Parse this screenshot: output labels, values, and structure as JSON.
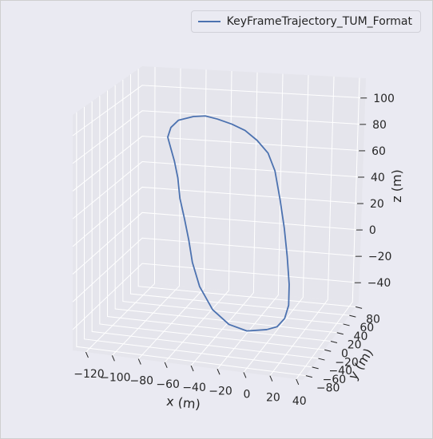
{
  "chart_data": {
    "type": "line3d",
    "title": "",
    "series": [
      {
        "name": "KeyFrameTrajectory_TUM_Format",
        "color": "#4c72b0",
        "points": [
          [
            0,
            -20,
            -45
          ],
          [
            -15,
            -22,
            -47
          ],
          [
            -30,
            -18,
            -45
          ],
          [
            -45,
            -10,
            -38
          ],
          [
            -58,
            0,
            -25
          ],
          [
            -66,
            8,
            -10
          ],
          [
            -70,
            12,
            5
          ],
          [
            -74,
            14,
            20
          ],
          [
            -78,
            15,
            35
          ],
          [
            -80,
            16,
            50
          ],
          [
            -83,
            17,
            62
          ],
          [
            -86,
            17,
            72
          ],
          [
            -88,
            16,
            80
          ],
          [
            -85,
            14,
            88
          ],
          [
            -78,
            10,
            95
          ],
          [
            -65,
            5,
            100
          ],
          [
            -55,
            2,
            102
          ],
          [
            -45,
            0,
            101
          ],
          [
            -33,
            -3,
            99
          ],
          [
            -22,
            -6,
            96
          ],
          [
            -12,
            -8,
            90
          ],
          [
            -3,
            -10,
            82
          ],
          [
            3,
            -12,
            70
          ],
          [
            8,
            -15,
            50
          ],
          [
            12,
            -17,
            30
          ],
          [
            15,
            -19,
            10
          ],
          [
            17,
            -20,
            -10
          ],
          [
            17,
            -21,
            -25
          ],
          [
            14,
            -21,
            -35
          ],
          [
            8,
            -20,
            -42
          ],
          [
            0,
            -20,
            -45
          ]
        ]
      }
    ],
    "xlabel": "x (m)",
    "ylabel": "y (m)",
    "zlabel": "z (m)",
    "x_ticks": [
      -120,
      -100,
      -80,
      -60,
      -40,
      -20,
      0,
      20,
      40
    ],
    "y_ticks": [
      -80,
      -60,
      -40,
      -20,
      0,
      20,
      40,
      60,
      80
    ],
    "z_ticks": [
      -40,
      -20,
      0,
      20,
      40,
      60,
      80,
      100
    ],
    "xlim": [
      -130,
      45
    ],
    "ylim": [
      -90,
      90
    ],
    "zlim": [
      -55,
      115
    ],
    "grid": true,
    "legend_position": "top-right"
  },
  "colors": {
    "background": "#eaeaf2",
    "pane": "#e5e5ec",
    "grid": "#ffffff",
    "line": "#4c72b0",
    "text": "#262626"
  }
}
